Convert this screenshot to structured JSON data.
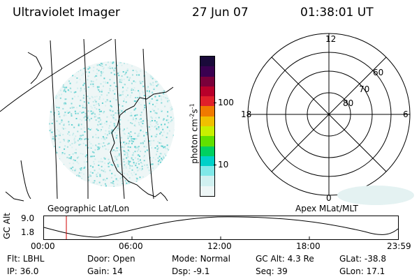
{
  "header": {
    "title": "Ultraviolet Imager",
    "date": "27 Jun 07",
    "time": "01:38:01 UT"
  },
  "colorbar": {
    "unit_label": "photon cm",
    "unit_exp1": "-2",
    "unit_mid": "s",
    "unit_exp2": "-1",
    "tick_100": "100",
    "tick_10": "10",
    "colors": [
      "#1a0a3a",
      "#3a0050",
      "#7a003a",
      "#b8002a",
      "#e0202a",
      "#f07a00",
      "#f0c000",
      "#c8f000",
      "#60e000",
      "#00d060",
      "#00d0c8",
      "#80e8e8",
      "#d0f0f0",
      "#eef6f6"
    ]
  },
  "polar": {
    "lab_12": "12",
    "lab_18": "18",
    "lab_6": "6",
    "lab_0": "0",
    "lab_60": "60",
    "lab_70": "70",
    "lab_80": "80"
  },
  "timeline": {
    "left_label": "Geographic Lat/Lon",
    "right_label": "Apex MLat/MLT",
    "ylabel": "GC Alt",
    "y_top": "9.0",
    "y_bottom": "1.8",
    "ticks": [
      "00:00",
      "06:00",
      "12:00",
      "18:00",
      "23:59"
    ]
  },
  "status": {
    "row1": [
      {
        "label": "Flt:",
        "value": "LBHL"
      },
      {
        "label": "Door:",
        "value": "Open"
      },
      {
        "label": "Mode:",
        "value": "Normal"
      },
      {
        "label": "GC Alt:",
        "value": "4.3 Re"
      },
      {
        "label": "GLat:",
        "value": "-38.8"
      }
    ],
    "row2": [
      {
        "label": "IP:",
        "value": "36.0"
      },
      {
        "label": "Gain:",
        "value": "14"
      },
      {
        "label": "Dsp:",
        "value": "-9.1"
      },
      {
        "label": "Seq:",
        "value": "39"
      },
      {
        "label": "GLon:",
        "value": "17.1"
      }
    ]
  }
}
